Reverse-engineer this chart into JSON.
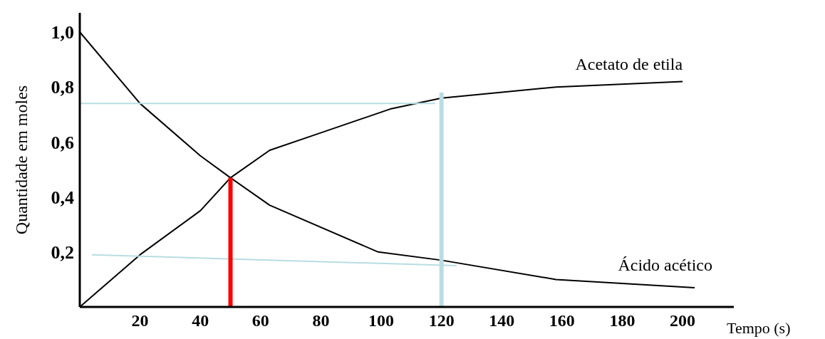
{
  "chart_data": {
    "type": "line",
    "xlabel": "Tempo (s)",
    "ylabel": "Quantidade em moles",
    "xlim": [
      0,
      217
    ],
    "ylim": [
      0,
      1.07
    ],
    "xticks": [
      20,
      40,
      60,
      80,
      100,
      120,
      140,
      160,
      180,
      200
    ],
    "yticks": [
      {
        "value": 0.2,
        "label": "0,2"
      },
      {
        "value": 0.4,
        "label": "0,4"
      },
      {
        "value": 0.6,
        "label": "0,6"
      },
      {
        "value": 0.8,
        "label": "0,8"
      },
      {
        "value": 1.0,
        "label": "1,0"
      }
    ],
    "grid": false,
    "marker": "none",
    "line_style": "solid",
    "series": [
      {
        "name": "Acetato de etila",
        "color": "#000000",
        "x": [
          0,
          20,
          40,
          50,
          63,
          79,
          103,
          120,
          158,
          200
        ],
        "values": [
          0,
          0.19,
          0.35,
          0.47,
          0.57,
          0.63,
          0.72,
          0.76,
          0.8,
          0.82
        ]
      },
      {
        "name": "Ácido acético",
        "color": "#000000",
        "x": [
          0,
          20,
          40,
          50,
          63,
          99,
          120,
          158,
          204
        ],
        "values": [
          1.0,
          0.74,
          0.55,
          0.47,
          0.37,
          0.2,
          0.17,
          0.1,
          0.07
        ]
      },
      {
        "color": "#b8dde2",
        "x": [
          0,
          118
        ],
        "values": [
          0.74,
          0.74
        ]
      },
      {
        "color": "#b8dde2",
        "x": [
          4,
          125
        ],
        "values": [
          0.19,
          0.15
        ]
      },
      {
        "color": "#ff0000",
        "x": [
          50,
          50
        ],
        "values": [
          0,
          0.47
        ]
      },
      {
        "color": "#b8dde2",
        "x": [
          120,
          120
        ],
        "values": [
          -0.0,
          0.78
        ]
      }
    ]
  }
}
